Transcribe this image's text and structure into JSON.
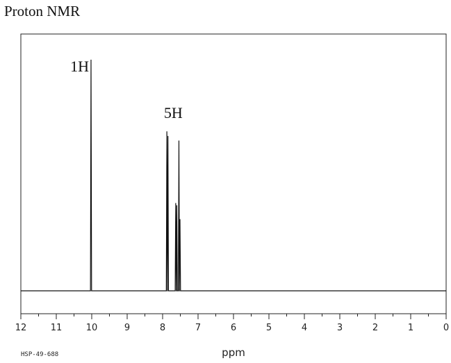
{
  "title": "Proton NMR",
  "chart_data": {
    "type": "line",
    "xlabel": "ppm",
    "ylabel": "",
    "xlim": [
      12,
      0
    ],
    "x_ticks": [
      12,
      11,
      10,
      9,
      8,
      7,
      6,
      5,
      4,
      3,
      2,
      1,
      0
    ],
    "x_tick_labels": [
      "12",
      "11",
      "10",
      "9",
      "8",
      "7",
      "6",
      "5",
      "4",
      "3",
      "2",
      "1",
      "0"
    ],
    "grid": false,
    "spectrum_code": "HSP-49-688",
    "peaks": [
      {
        "ppm": 10.02,
        "height": 1.0
      },
      {
        "ppm": 7.88,
        "height": 0.69
      },
      {
        "ppm": 7.85,
        "height": 0.67
      },
      {
        "ppm": 7.63,
        "height": 0.38
      },
      {
        "ppm": 7.6,
        "height": 0.37
      },
      {
        "ppm": 7.54,
        "height": 0.65
      },
      {
        "ppm": 7.51,
        "height": 0.31
      }
    ],
    "annotations": [
      {
        "text": "1H",
        "ppm": 10.02
      },
      {
        "text": "5H",
        "ppm": 7.7
      }
    ]
  }
}
